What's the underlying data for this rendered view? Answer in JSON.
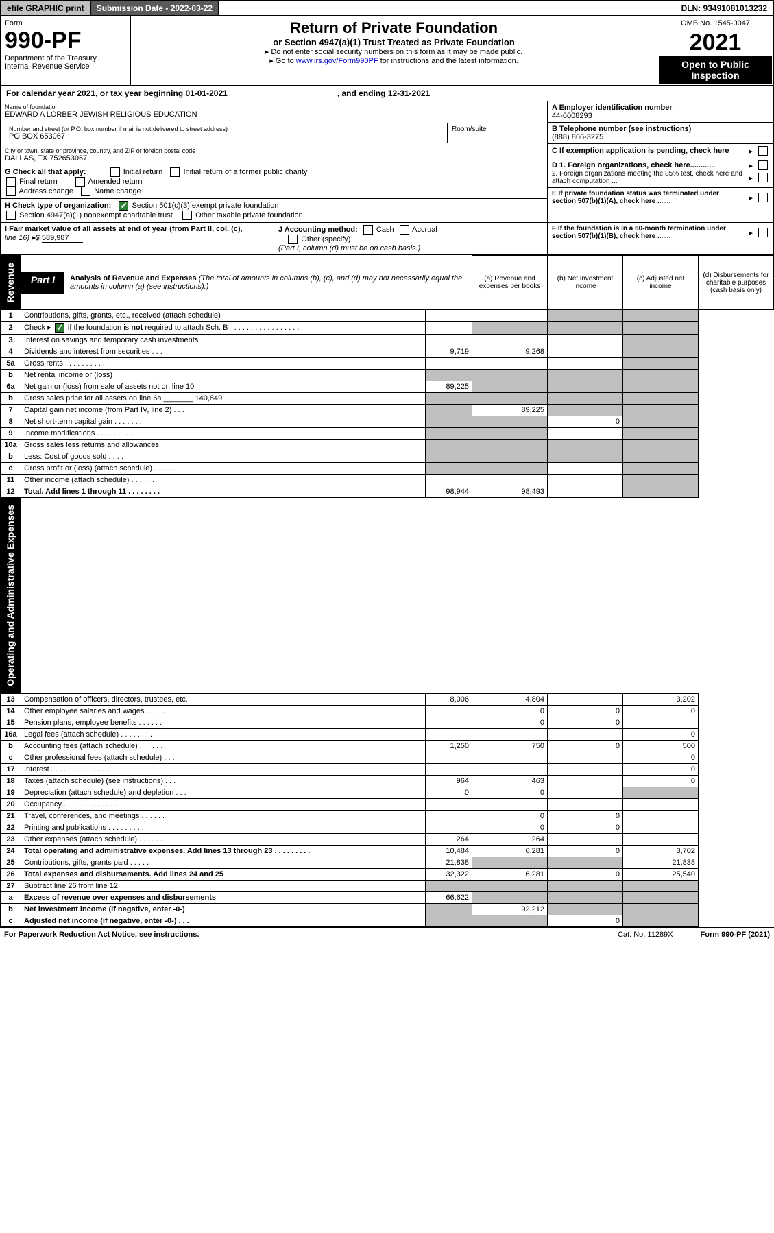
{
  "topbar": {
    "efile": "efile GRAPHIC print",
    "subdate_label": "Submission Date - 2022-03-22",
    "dln": "DLN: 93491081013232"
  },
  "header": {
    "form_word": "Form",
    "form_no": "990-PF",
    "dept1": "Department of the Treasury",
    "dept2": "Internal Revenue Service",
    "title": "Return of Private Foundation",
    "subtitle": "or Section 4947(a)(1) Trust Treated as Private Foundation",
    "note1": "▸ Do not enter social security numbers on this form as it may be made public.",
    "note2_pre": "▸ Go to ",
    "note2_link": "www.irs.gov/Form990PF",
    "note2_post": " for instructions and the latest information.",
    "omb": "OMB No. 1545-0047",
    "year": "2021",
    "open": "Open to Public Inspection"
  },
  "calendar": {
    "text": "For calendar year 2021, or tax year beginning 01-01-2021",
    "ending": ", and ending 12-31-2021"
  },
  "entity": {
    "name_lbl": "Name of foundation",
    "name": "EDWARD A LORBER JEWISH RELIGIOUS EDUCATION",
    "addr_lbl": "Number and street (or P.O. box number if mail is not delivered to street address)",
    "addr": "PO BOX 653067",
    "room_lbl": "Room/suite",
    "city_lbl": "City or town, state or province, country, and ZIP or foreign postal code",
    "city": "DALLAS, TX  752653067",
    "a_lbl": "A Employer identification number",
    "a_val": "44-6008293",
    "b_lbl": "B Telephone number (see instructions)",
    "b_val": "(888) 866-3275",
    "c_lbl": "C If exemption application is pending, check here",
    "d1_lbl": "D 1. Foreign organizations, check here............",
    "d2_lbl": "2. Foreign organizations meeting the 85% test, check here and attach computation ...",
    "e_lbl": "E  If private foundation status was terminated under section 507(b)(1)(A), check here .......",
    "f_lbl": "F  If the foundation is in a 60-month termination under section 507(b)(1)(B), check here .......",
    "g_lbl": "G Check all that apply:",
    "g_opts": [
      "Initial return",
      "Initial return of a former public charity",
      "Final return",
      "Amended return",
      "Address change",
      "Name change"
    ],
    "h_lbl": "H Check type of organization:",
    "h_opt1": "Section 501(c)(3) exempt private foundation",
    "h_opt2": "Section 4947(a)(1) nonexempt charitable trust",
    "h_opt3": "Other taxable private foundation",
    "i_lbl": "I Fair market value of all assets at end of year (from Part II, col. (c),",
    "i_line16": "line 16) ▸$",
    "i_val": "589,987",
    "j_lbl": "J Accounting method:",
    "j_cash": "Cash",
    "j_accrual": "Accrual",
    "j_other": "Other (specify)",
    "j_note": "(Part I, column (d) must be on cash basis.)"
  },
  "part1": {
    "tag": "Part I",
    "title": "Analysis of Revenue and Expenses",
    "titlesub": " (The total of amounts in columns (b), (c), and (d) may not necessarily equal the amounts in column (a) (see instructions).)",
    "col_a": "(a)   Revenue and expenses per books",
    "col_b": "(b)   Net investment income",
    "col_c": "(c)   Adjusted net income",
    "col_d": "(d)  Disbursements for charitable purposes (cash basis only)"
  },
  "sidelabels": {
    "rev": "Revenue",
    "opex": "Operating and Administrative Expenses"
  },
  "rows": [
    {
      "n": "1",
      "d": "Contributions, gifts, grants, etc., received (attach schedule)",
      "a": "",
      "b": "",
      "c": "",
      "dd": "",
      "cGrey": true,
      "dGrey": true
    },
    {
      "n": "2",
      "d": "Check ▸ [✓] if the foundation is not required to attach Sch. B   . . . . . . . . . . . . . . . .",
      "a": "",
      "b": "",
      "c": "",
      "dd": "",
      "bGrey": true,
      "cGrey": true,
      "dGrey": true,
      "hasCheck": true
    },
    {
      "n": "3",
      "d": "Interest on savings and temporary cash investments",
      "a": "",
      "b": "",
      "c": "",
      "dd": "",
      "dGrey": true
    },
    {
      "n": "4",
      "d": "Dividends and interest from securities   .  .  .",
      "a": "9,719",
      "b": "9,268",
      "c": "",
      "dd": "",
      "dGrey": true
    },
    {
      "n": "5a",
      "d": "Gross rents   .  .  .  .  .  .  .  .  .  .  .",
      "a": "",
      "b": "",
      "c": "",
      "dd": "",
      "dGrey": true
    },
    {
      "n": "b",
      "d": "Net rental income or (loss)  ",
      "a": "",
      "b": "",
      "c": "",
      "dd": "",
      "aGrey": true,
      "bGrey": true,
      "cGrey": true,
      "dGrey": true
    },
    {
      "n": "6a",
      "d": "Net gain or (loss) from sale of assets not on line 10",
      "a": "89,225",
      "b": "",
      "c": "",
      "dd": "",
      "bGrey": true,
      "cGrey": true,
      "dGrey": true
    },
    {
      "n": "b",
      "d": "Gross sales price for all assets on line 6a _______ 140,849",
      "a": "",
      "b": "",
      "c": "",
      "dd": "",
      "aGrey": true,
      "bGrey": true,
      "cGrey": true,
      "dGrey": true
    },
    {
      "n": "7",
      "d": "Capital gain net income (from Part IV, line 2)   .  .  .",
      "a": "",
      "b": "89,225",
      "c": "",
      "dd": "",
      "aGrey": true,
      "cGrey": true,
      "dGrey": true
    },
    {
      "n": "8",
      "d": "Net short-term capital gain  .  .  .  .  .  .  .",
      "a": "",
      "b": "",
      "c": "0",
      "dd": "",
      "aGrey": true,
      "bGrey": true,
      "dGrey": true
    },
    {
      "n": "9",
      "d": "Income modifications .  .  .  .  .  .  .  .  .",
      "a": "",
      "b": "",
      "c": "",
      "dd": "",
      "aGrey": true,
      "bGrey": true,
      "dGrey": true
    },
    {
      "n": "10a",
      "d": "Gross sales less returns and allowances",
      "a": "",
      "b": "",
      "c": "",
      "dd": "",
      "aGrey": true,
      "bGrey": true,
      "cGrey": true,
      "dGrey": true
    },
    {
      "n": "b",
      "d": "Less: Cost of goods sold   .  .  .  .",
      "a": "",
      "b": "",
      "c": "",
      "dd": "",
      "aGrey": true,
      "bGrey": true,
      "cGrey": true,
      "dGrey": true
    },
    {
      "n": "c",
      "d": "Gross profit or (loss) (attach schedule)   .  .  .  .  .",
      "a": "",
      "b": "",
      "c": "",
      "dd": "",
      "aGrey": true,
      "bGrey": true,
      "dGrey": true
    },
    {
      "n": "11",
      "d": "Other income (attach schedule)   .  .  .  .  .  .",
      "a": "",
      "b": "",
      "c": "",
      "dd": "",
      "dGrey": true
    },
    {
      "n": "12",
      "d": "Total. Add lines 1 through 11  .  .  .  .  .  .  .  .",
      "a": "98,944",
      "b": "98,493",
      "c": "",
      "dd": "",
      "dGrey": true,
      "bold": true
    }
  ],
  "rows2": [
    {
      "n": "13",
      "d": "Compensation of officers, directors, trustees, etc.",
      "a": "8,006",
      "b": "4,804",
      "c": "",
      "dd": "3,202"
    },
    {
      "n": "14",
      "d": "Other employee salaries and wages   .  .  .  .  .",
      "a": "",
      "b": "0",
      "c": "0",
      "dd": "0"
    },
    {
      "n": "15",
      "d": "Pension plans, employee benefits  .  .  .  .  .  .",
      "a": "",
      "b": "0",
      "c": "0",
      "dd": ""
    },
    {
      "n": "16a",
      "d": "Legal fees (attach schedule) .  .  .  .  .  .  .  .",
      "a": "",
      "b": "",
      "c": "",
      "dd": "0"
    },
    {
      "n": "b",
      "d": "Accounting fees (attach schedule) .  .  .  .  .  .",
      "a": "1,250",
      "b": "750",
      "c": "0",
      "dd": "500"
    },
    {
      "n": "c",
      "d": "Other professional fees (attach schedule)   .  .  .",
      "a": "",
      "b": "",
      "c": "",
      "dd": "0"
    },
    {
      "n": "17",
      "d": "Interest .  .  .  .  .  .  .  .  .  .  .  .  .  .",
      "a": "",
      "b": "",
      "c": "",
      "dd": "0"
    },
    {
      "n": "18",
      "d": "Taxes (attach schedule) (see instructions)   .  .  .",
      "a": "964",
      "b": "463",
      "c": "",
      "dd": "0"
    },
    {
      "n": "19",
      "d": "Depreciation (attach schedule) and depletion   .  .  .",
      "a": "0",
      "b": "0",
      "c": "",
      "dd": "",
      "dGrey": true
    },
    {
      "n": "20",
      "d": "Occupancy .  .  .  .  .  .  .  .  .  .  .  .  .",
      "a": "",
      "b": "",
      "c": "",
      "dd": ""
    },
    {
      "n": "21",
      "d": "Travel, conferences, and meetings .  .  .  .  .  .",
      "a": "",
      "b": "0",
      "c": "0",
      "dd": ""
    },
    {
      "n": "22",
      "d": "Printing and publications .  .  .  .  .  .  .  .  .",
      "a": "",
      "b": "0",
      "c": "0",
      "dd": ""
    },
    {
      "n": "23",
      "d": "Other expenses (attach schedule) .  .  .  .  .  .",
      "a": "264",
      "b": "264",
      "c": "",
      "dd": ""
    },
    {
      "n": "24",
      "d": "Total operating and administrative expenses. Add lines 13 through 23  .  .  .  .  .  .  .  .  .",
      "a": "10,484",
      "b": "6,281",
      "c": "0",
      "dd": "3,702",
      "bold": true
    },
    {
      "n": "25",
      "d": "Contributions, gifts, grants paid   .  .  .  .  .",
      "a": "21,838",
      "b": "",
      "c": "",
      "dd": "21,838",
      "bGrey": true,
      "cGrey": true
    },
    {
      "n": "26",
      "d": "Total expenses and disbursements. Add lines 24 and 25",
      "a": "32,322",
      "b": "6,281",
      "c": "0",
      "dd": "25,540",
      "bold": true
    },
    {
      "n": "27",
      "d": "Subtract line 26 from line 12:",
      "a": "",
      "b": "",
      "c": "",
      "dd": "",
      "aGrey": true,
      "bGrey": true,
      "cGrey": true,
      "dGrey": true
    },
    {
      "n": "a",
      "d": "Excess of revenue over expenses and disbursements",
      "a": "66,622",
      "b": "",
      "c": "",
      "dd": "",
      "bGrey": true,
      "cGrey": true,
      "dGrey": true,
      "bold": true
    },
    {
      "n": "b",
      "d": "Net investment income (if negative, enter -0-)",
      "a": "",
      "b": "92,212",
      "c": "",
      "dd": "",
      "aGrey": true,
      "cGrey": true,
      "dGrey": true,
      "bold": true
    },
    {
      "n": "c",
      "d": "Adjusted net income (if negative, enter -0-)  .  .  .",
      "a": "",
      "b": "",
      "c": "0",
      "dd": "",
      "aGrey": true,
      "bGrey": true,
      "dGrey": true,
      "bold": true
    }
  ],
  "footer": {
    "left": "For Paperwork Reduction Act Notice, see instructions.",
    "mid": "Cat. No. 11289X",
    "right": "Form 990-PF (2021)"
  },
  "colors": {
    "grey_fill": "#bfbfbf",
    "link": "#0000cc",
    "check_green": "#2e7d32"
  }
}
